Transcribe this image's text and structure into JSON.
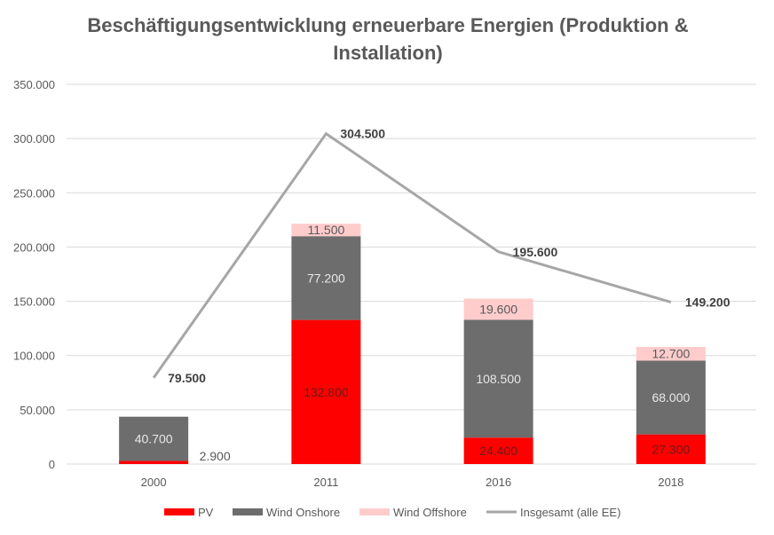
{
  "chart_data": {
    "type": "bar",
    "title": "Beschäftigungsentwicklung erneuerbare Energien (Produktion & Installation)",
    "title_lines": [
      "Beschäftigungsentwicklung erneuerbare Energien (Produktion &",
      "Installation)"
    ],
    "categories": [
      "2000",
      "2011",
      "2016",
      "2018"
    ],
    "stacked": true,
    "series": [
      {
        "name": "PV",
        "color": "#ff0000",
        "values": [
          2900,
          132800,
          24400,
          27300
        ],
        "labels": [
          "2.900",
          "132.800",
          "24.400",
          "27.300"
        ]
      },
      {
        "name": "Wind Onshore",
        "color": "#6d6d6d",
        "values": [
          40700,
          77200,
          108500,
          68000
        ],
        "labels": [
          "40.700",
          "77.200",
          "108.500",
          "68.000"
        ]
      },
      {
        "name": "Wind Offshore",
        "color": "#ffcccc",
        "values": [
          0,
          11500,
          19600,
          12700
        ],
        "labels": [
          "",
          "11.500",
          "19.600",
          "12.700"
        ]
      }
    ],
    "line_series": {
      "name": "Insgesamt (alle EE)",
      "color": "#a6a6a6",
      "values": [
        79500,
        304500,
        195600,
        149200
      ],
      "labels": [
        "79.500",
        "304.500",
        "195.600",
        "149.200"
      ]
    },
    "yticks": [
      0,
      50000,
      100000,
      150000,
      200000,
      250000,
      300000,
      350000
    ],
    "ytick_labels": [
      "0",
      "50.000",
      "100.000",
      "150.000",
      "200.000",
      "250.000",
      "300.000",
      "350.000"
    ],
    "ylim": [
      0,
      350000
    ],
    "grid": true,
    "legend": "bottom",
    "xlabel": "",
    "ylabel": ""
  }
}
